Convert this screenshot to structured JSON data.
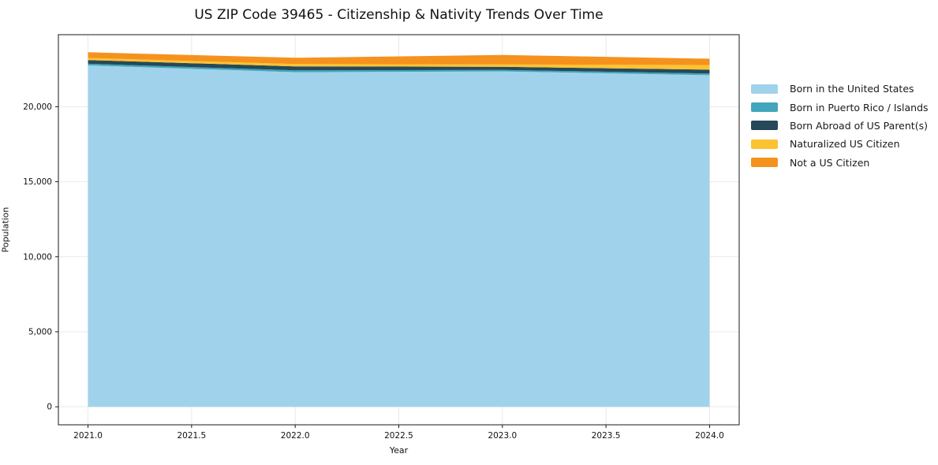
{
  "chart_data": {
    "type": "area",
    "stacked": true,
    "title": "US ZIP Code 39465 - Citizenship & Nativity Trends Over Time",
    "xlabel": "Year",
    "ylabel": "Population",
    "x": [
      2021,
      2022,
      2023,
      2024
    ],
    "series": [
      {
        "name": "Born in the United States",
        "color": "#a0d3eb",
        "values": [
          22750,
          22300,
          22350,
          22100
        ]
      },
      {
        "name": "Born in Puerto Rico / Islands",
        "color": "#41a6bd",
        "values": [
          110,
          120,
          100,
          110
        ]
      },
      {
        "name": "Born Abroad of US Parent(s)",
        "color": "#264959",
        "values": [
          250,
          270,
          210,
          260
        ]
      },
      {
        "name": "Naturalized US Citizen",
        "color": "#fcc330",
        "values": [
          140,
          150,
          160,
          310
        ]
      },
      {
        "name": "Not a US Citizen",
        "color": "#f5921e",
        "values": [
          380,
          420,
          630,
          420
        ]
      }
    ],
    "totals": [
      23630,
      23260,
      23450,
      23200
    ],
    "xlim": [
      2020.857,
      2024.143
    ],
    "ylim": [
      -1200,
      24800
    ],
    "xticks": {
      "values": [
        2021.0,
        2021.5,
        2022.0,
        2022.5,
        2023.0,
        2023.5,
        2024.0
      ],
      "labels": [
        "2021.0",
        "2021.5",
        "2022.0",
        "2022.5",
        "2023.0",
        "2023.5",
        "2024.0"
      ]
    },
    "yticks": {
      "values": [
        0,
        5000,
        10000,
        15000,
        20000
      ],
      "labels": [
        "0",
        "5,000",
        "10,000",
        "15,000",
        "20,000"
      ]
    },
    "grid": true,
    "legend_position": "right",
    "colors": {
      "gridline": "#e9e9e9",
      "spine": "#1a1a1a",
      "tick_label": "#111111",
      "background": "#ffffff"
    }
  }
}
